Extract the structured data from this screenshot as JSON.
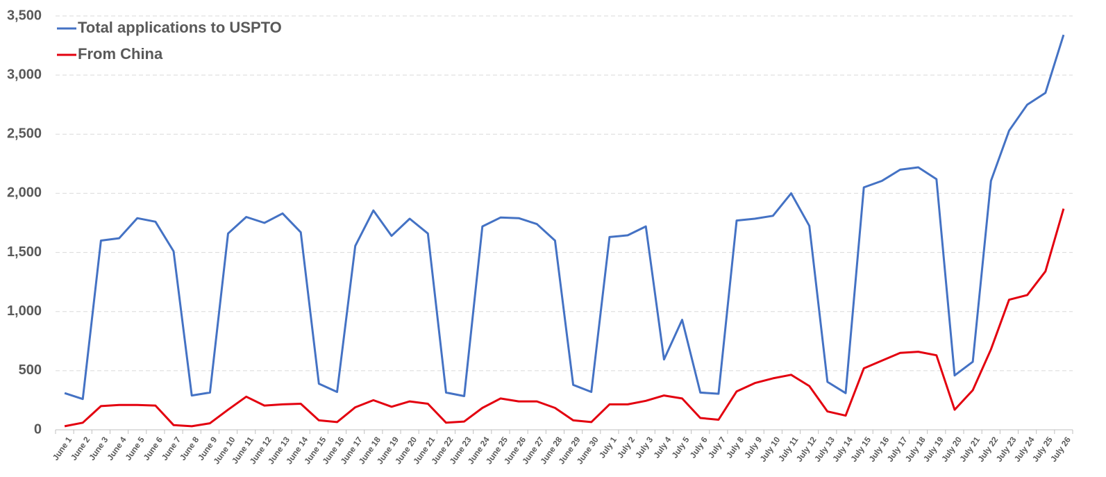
{
  "chart_data": {
    "type": "line",
    "categories": [
      "June 1",
      "June 2",
      "June 3",
      "June 4",
      "June 5",
      "June 6",
      "June 7",
      "June 8",
      "June 9",
      "June 10",
      "June 11",
      "June 12",
      "June 13",
      "June 14",
      "June 15",
      "June 16",
      "June 17",
      "June 18",
      "June 19",
      "June 20",
      "June 21",
      "June 22",
      "June 23",
      "June 24",
      "June 25",
      "June 26",
      "June 27",
      "June 28",
      "June 29",
      "June 30",
      "July 1",
      "July 2",
      "July 3",
      "July 4",
      "July 5",
      "July 6",
      "July 7",
      "July 8",
      "July 9",
      "July 10",
      "July 11",
      "July 12",
      "July 13",
      "July 14",
      "July 15",
      "July 16",
      "July 17",
      "July 18",
      "July 19",
      "July 20",
      "July 21",
      "July 22",
      "July 23",
      "July 24",
      "July 25",
      "July 26"
    ],
    "series": [
      {
        "name": "Total applications to USPTO",
        "color": "#4472c4",
        "values": [
          310,
          260,
          1600,
          1620,
          1790,
          1760,
          1510,
          290,
          315,
          1660,
          1800,
          1750,
          1830,
          1670,
          390,
          320,
          1555,
          1855,
          1640,
          1785,
          1660,
          315,
          285,
          1720,
          1795,
          1790,
          1740,
          1600,
          380,
          320,
          1630,
          1645,
          1720,
          595,
          930,
          315,
          305,
          1770,
          1785,
          1810,
          2000,
          1725,
          405,
          310,
          2050,
          2105,
          2200,
          2220,
          2120,
          460,
          575,
          2105,
          2530,
          2750,
          2850,
          3340
        ]
      },
      {
        "name": "From China",
        "color": "#e3000f",
        "values": [
          30,
          60,
          200,
          210,
          210,
          205,
          40,
          30,
          55,
          170,
          280,
          205,
          215,
          220,
          80,
          65,
          190,
          250,
          195,
          240,
          220,
          60,
          70,
          185,
          265,
          240,
          240,
          185,
          80,
          65,
          215,
          215,
          245,
          290,
          265,
          100,
          85,
          325,
          395,
          435,
          465,
          370,
          155,
          120,
          520,
          585,
          650,
          660,
          630,
          170,
          335,
          680,
          1100,
          1140,
          1340,
          1870
        ]
      }
    ],
    "ylim": [
      0,
      3500
    ],
    "yticks": [
      0,
      500,
      {
        "value": 1000,
        "label": "1,000"
      },
      {
        "value": 1500,
        "label": "1,500"
      },
      {
        "value": 2000,
        "label": "2,000"
      },
      {
        "value": 2500,
        "label": "2,500"
      },
      {
        "value": 3000,
        "label": "3,000"
      },
      {
        "value": 3500,
        "label": "3,500"
      }
    ],
    "grid": true,
    "legend": "top-left"
  }
}
